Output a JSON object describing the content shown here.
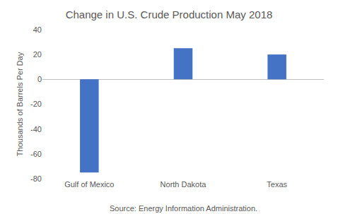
{
  "chart_data": {
    "type": "bar",
    "title": "Change in U.S. Crude Production May 2018",
    "y_label": "Thousands of Barrels Per Day",
    "categories": [
      "Gulf of Mexico",
      "North Dakota",
      "Texas"
    ],
    "values": [
      -75,
      25,
      20
    ],
    "color": "#4472c4",
    "ylim": [
      -80,
      40
    ],
    "yticks": [
      -80,
      -60,
      -40,
      -20,
      0,
      20,
      40
    ],
    "grid": false,
    "annotations": [
      "Source: Energy Information Administration."
    ]
  }
}
